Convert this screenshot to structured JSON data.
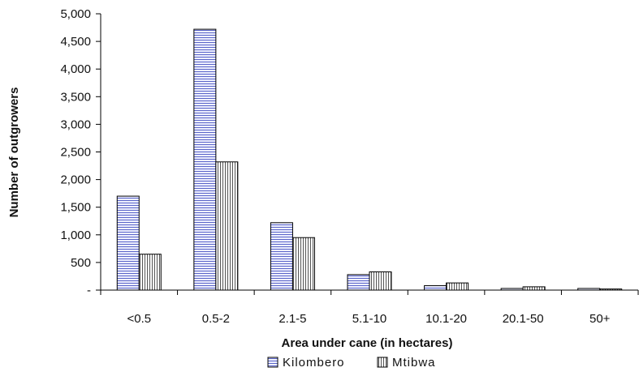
{
  "chart_data": {
    "type": "bar",
    "categories": [
      "<0.5",
      "0.5-2",
      "2.1-5",
      "5.1-10",
      "10.1-20",
      "20.1-50",
      "50+"
    ],
    "series": [
      {
        "name": "Kilombero",
        "values": [
          1700,
          4720,
          1220,
          280,
          80,
          30,
          30
        ],
        "color": "#c9cdf0",
        "pattern": "horizontal-lines"
      },
      {
        "name": "Mtibwa",
        "values": [
          650,
          2320,
          950,
          330,
          130,
          60,
          20
        ],
        "color": "#d9d9d9",
        "pattern": "vertical-lines"
      }
    ],
    "xlabel": "Area under cane (in hectares)",
    "ylabel": "Number of outgrowers",
    "ylim": [
      0,
      5000
    ],
    "yticks": [
      0,
      500,
      1000,
      1500,
      2000,
      2500,
      3000,
      3500,
      4000,
      4500,
      5000
    ],
    "ytick_labels": [
      "-",
      "500",
      "1,000",
      "1,500",
      "2,000",
      "2,500",
      "3,000",
      "3,500",
      "4,000",
      "4,500",
      "5,000"
    ],
    "grid": false,
    "legend_position": "bottom-center"
  }
}
